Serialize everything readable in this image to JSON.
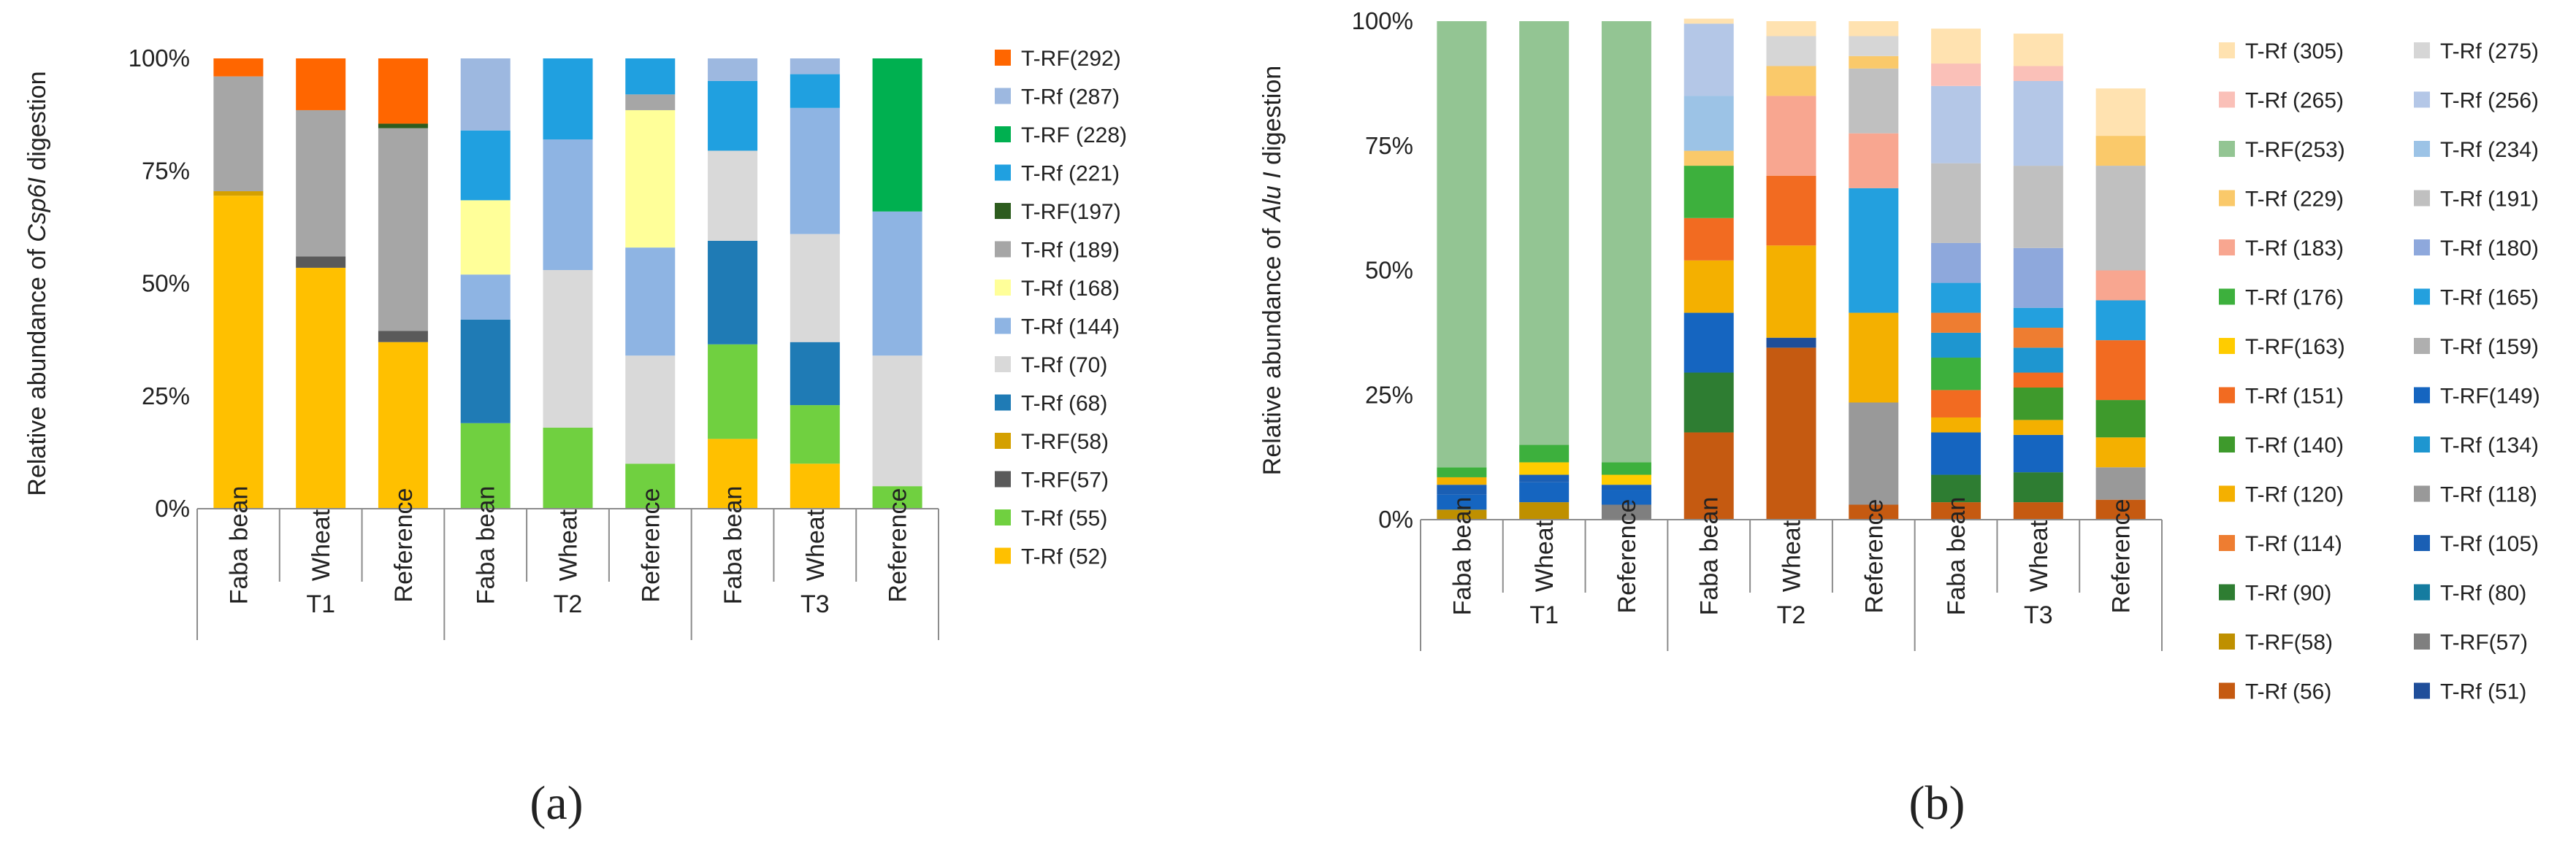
{
  "chart_data": [
    {
      "type": "bar",
      "stacked": true,
      "panel_label": "(a)",
      "ylabel_parts": [
        "Relative abundance of ",
        "Csp6I",
        " digestion"
      ],
      "ylim": [
        0,
        100
      ],
      "yticks": [
        0,
        25,
        50,
        75,
        100
      ],
      "ytick_labels": [
        "0%",
        "25%",
        "50%",
        "75%",
        "100%"
      ],
      "categories": [
        "Faba bean",
        "Wheat",
        "Reference",
        "Faba bean",
        "Wheat",
        "Reference",
        "Faba bean",
        "Wheat",
        "Reference"
      ],
      "groups": [
        "T1",
        "T2",
        "T3"
      ],
      "legend_position": "right",
      "series": [
        {
          "name": "T-Rf (52)",
          "color": "#FFC000",
          "values": [
            69.5,
            53.5,
            37,
            0,
            0,
            0,
            15.5,
            10,
            0
          ]
        },
        {
          "name": "T-Rf (55)",
          "color": "#70D040",
          "values": [
            0,
            0,
            0,
            19,
            18,
            10,
            21,
            13,
            5
          ]
        },
        {
          "name": "T-RF(57)",
          "color": "#5A5A5A",
          "values": [
            0,
            2.5,
            2.5,
            0,
            0,
            0,
            0,
            0,
            0
          ]
        },
        {
          "name": "T-RF(58)",
          "color": "#D4A000",
          "values": [
            1,
            0,
            0,
            0,
            0,
            0,
            0,
            0,
            0
          ]
        },
        {
          "name": "T-Rf (68)",
          "color": "#1F7BB5",
          "values": [
            0,
            0,
            0,
            23,
            0,
            0,
            23,
            14,
            0
          ]
        },
        {
          "name": "T-Rf (70)",
          "color": "#D9D9D9",
          "values": [
            0,
            0,
            0,
            0,
            35,
            24,
            20,
            24,
            29
          ]
        },
        {
          "name": "T-Rf (144)",
          "color": "#8EB4E3",
          "values": [
            0,
            0,
            0,
            10,
            29,
            24,
            0,
            28,
            32
          ]
        },
        {
          "name": "T-Rf (168)",
          "color": "#FFFF99",
          "values": [
            0,
            0,
            0,
            16.5,
            0,
            30.5,
            0,
            0,
            0
          ]
        },
        {
          "name": "T-Rf (189)",
          "color": "#A6A6A6",
          "values": [
            25.5,
            32.5,
            45,
            0,
            0,
            3.5,
            0,
            0,
            0
          ]
        },
        {
          "name": "T-RF(197)",
          "color": "#2D5C1E",
          "values": [
            0,
            0,
            1,
            0,
            0,
            0,
            0,
            0,
            0
          ]
        },
        {
          "name": "T-Rf (221)",
          "color": "#20A0E0",
          "values": [
            0,
            0,
            0,
            15.5,
            18,
            8,
            15.5,
            7.5,
            0
          ]
        },
        {
          "name": "T-RF (228)",
          "color": "#00B050",
          "values": [
            0,
            0,
            0,
            0,
            0,
            0,
            0,
            0,
            34
          ]
        },
        {
          "name": "T-Rf (287)",
          "color": "#9DB8E0",
          "values": [
            0,
            0,
            0,
            16,
            0,
            0,
            5,
            3.5,
            0
          ]
        },
        {
          "name": "T-RF(292)",
          "color": "#FF6600",
          "values": [
            4,
            11.5,
            14.5,
            0,
            0,
            0,
            0,
            0,
            0
          ]
        }
      ]
    },
    {
      "type": "bar",
      "stacked": true,
      "panel_label": "(b)",
      "ylabel_parts": [
        "Relative abundance of ",
        "Alu I",
        " digestion"
      ],
      "ylim": [
        0,
        100
      ],
      "yticks": [
        0,
        25,
        50,
        75,
        100
      ],
      "ytick_labels": [
        "0%",
        "25%",
        "50%",
        "75%",
        "100%"
      ],
      "categories": [
        "Faba bean",
        "Wheat",
        "Reference",
        "Faba bean",
        "Wheat",
        "Reference",
        "Faba bean",
        "Wheat",
        "Reference"
      ],
      "groups": [
        "T1",
        "T2",
        "T3"
      ],
      "legend_position": "right",
      "series": [
        {
          "name": "T-Rf (56)",
          "color": "#C55A11",
          "values": [
            0,
            0,
            0,
            17.5,
            34.5,
            3,
            3.5,
            3.5,
            4
          ]
        },
        {
          "name": "T-Rf (51)",
          "color": "#1F4E9A",
          "values": [
            0,
            0,
            0,
            0,
            2,
            0,
            0,
            0,
            0
          ]
        },
        {
          "name": "T-RF(58)",
          "color": "#BF9000",
          "values": [
            2,
            3.5,
            0,
            0,
            0,
            0,
            0,
            0,
            0
          ]
        },
        {
          "name": "T-RF(57)",
          "color": "#7F7F7F",
          "values": [
            0,
            0,
            3,
            0,
            0,
            0,
            0,
            0,
            0
          ]
        },
        {
          "name": "T-Rf (118)",
          "color": "#999999",
          "values": [
            0,
            0,
            0,
            0,
            0,
            20.5,
            0,
            0,
            6.5
          ]
        },
        {
          "name": "T-Rf (90)",
          "color": "#2E7D32",
          "values": [
            0,
            0,
            0,
            12,
            0,
            0,
            5.5,
            6,
            0
          ]
        },
        {
          "name": "T-Rf (80)",
          "color": "#157CA0",
          "values": [
            0,
            0,
            0,
            0,
            0,
            0,
            0,
            0,
            0
          ]
        },
        {
          "name": "T-RF(149)",
          "color": "#1565C0",
          "values": [
            3,
            4,
            3,
            12,
            0,
            0,
            8.5,
            7.5,
            0
          ]
        },
        {
          "name": "T-Rf (105)",
          "color": "#1A5FB4",
          "values": [
            2,
            1.5,
            1,
            0,
            0,
            0,
            0,
            0,
            0
          ]
        },
        {
          "name": "T-RF(163)",
          "color": "#FFCC00",
          "values": [
            0,
            2.5,
            2,
            0,
            0,
            0,
            0,
            0,
            0
          ]
        },
        {
          "name": "T-Rf (120)",
          "color": "#F4B000",
          "values": [
            1.5,
            0,
            0,
            10.5,
            18.5,
            18,
            3,
            3,
            6
          ]
        },
        {
          "name": "T-Rf (140)",
          "color": "#3E9A2C",
          "values": [
            0,
            0,
            0,
            0,
            0,
            0,
            0,
            6.5,
            7.5
          ]
        },
        {
          "name": "T-Rf (151)",
          "color": "#F26B21",
          "values": [
            0,
            0,
            0,
            8.5,
            14,
            0,
            5.5,
            3,
            12
          ]
        },
        {
          "name": "T-Rf (176)",
          "color": "#3DB03D",
          "values": [
            2,
            3.5,
            2.5,
            10.5,
            0,
            0,
            6.5,
            0,
            0
          ]
        },
        {
          "name": "T-Rf (134)",
          "color": "#1E96D0",
          "values": [
            0,
            0,
            0,
            0,
            0,
            0,
            5,
            5,
            0
          ]
        },
        {
          "name": "T-Rf (114)",
          "color": "#EE7D31",
          "values": [
            0,
            0,
            0,
            0,
            0,
            0,
            4,
            4,
            0
          ]
        },
        {
          "name": "T-Rf (165)",
          "color": "#23A0DE",
          "values": [
            0,
            0,
            0,
            0,
            0,
            25,
            6,
            4,
            8
          ]
        },
        {
          "name": "T-Rf (183)",
          "color": "#F8A690",
          "values": [
            0,
            0,
            0,
            0,
            16,
            11,
            0,
            0,
            6
          ]
        },
        {
          "name": "T-Rf (180)",
          "color": "#8EA8DC",
          "values": [
            0,
            0,
            0,
            0,
            0,
            0,
            8,
            12,
            0
          ]
        },
        {
          "name": "T-Rf (191)",
          "color": "#C0C0C0",
          "values": [
            0,
            0,
            0,
            0,
            0,
            13,
            16,
            16.5,
            21
          ]
        },
        {
          "name": "T-Rf (229)",
          "color": "#FAC96A",
          "values": [
            0,
            0,
            0,
            3,
            6,
            2.5,
            0,
            0,
            6
          ]
        },
        {
          "name": "T-Rf (234)",
          "color": "#9CC3E6",
          "values": [
            0,
            0,
            0,
            11,
            0,
            0,
            0,
            0,
            0
          ]
        },
        {
          "name": "T-RF(253)",
          "color": "#93C593",
          "values": [
            89.5,
            85,
            88.5,
            0,
            0,
            0,
            0,
            0,
            0
          ]
        },
        {
          "name": "T-Rf (256)",
          "color": "#B4C7E7",
          "values": [
            0,
            0,
            0,
            14.5,
            0,
            0,
            15.5,
            17,
            0
          ]
        },
        {
          "name": "T-Rf (265)",
          "color": "#FAC0B8",
          "values": [
            0,
            0,
            0,
            0,
            0,
            0,
            4.5,
            3,
            0
          ]
        },
        {
          "name": "T-Rf (275)",
          "color": "#D6D6D6",
          "values": [
            0,
            0,
            0,
            0,
            6,
            4,
            0,
            0,
            0
          ]
        },
        {
          "name": "T-Rf (305)",
          "color": "#FFE2B0",
          "values": [
            0,
            0,
            0,
            1,
            3,
            3,
            7,
            6.5,
            9.5
          ]
        }
      ],
      "legend_order": [
        [
          "T-Rf (305)",
          "T-Rf (275)"
        ],
        [
          "T-Rf (265)",
          "T-Rf (256)"
        ],
        [
          "T-RF(253)",
          "T-Rf (234)"
        ],
        [
          "T-Rf (229)",
          "T-Rf (191)"
        ],
        [
          "T-Rf (183)",
          "T-Rf (180)"
        ],
        [
          "T-Rf (176)",
          "T-Rf (165)"
        ],
        [
          "T-RF(163)",
          "T-Rf (159)"
        ],
        [
          "T-Rf (151)",
          "T-RF(149)"
        ],
        [
          "T-Rf (140)",
          "T-Rf (134)"
        ],
        [
          "T-Rf (120)",
          "T-Rf (118)"
        ],
        [
          "T-Rf (114)",
          "T-Rf (105)"
        ],
        [
          "T-Rf (90)",
          "T-Rf (80)"
        ],
        [
          "T-RF(58)",
          "T-RF(57)"
        ],
        [
          "T-Rf (56)",
          "T-Rf (51)"
        ]
      ],
      "legend_extra": [
        {
          "name": "T-Rf (159)",
          "color": "#AFAFAF"
        }
      ]
    }
  ]
}
